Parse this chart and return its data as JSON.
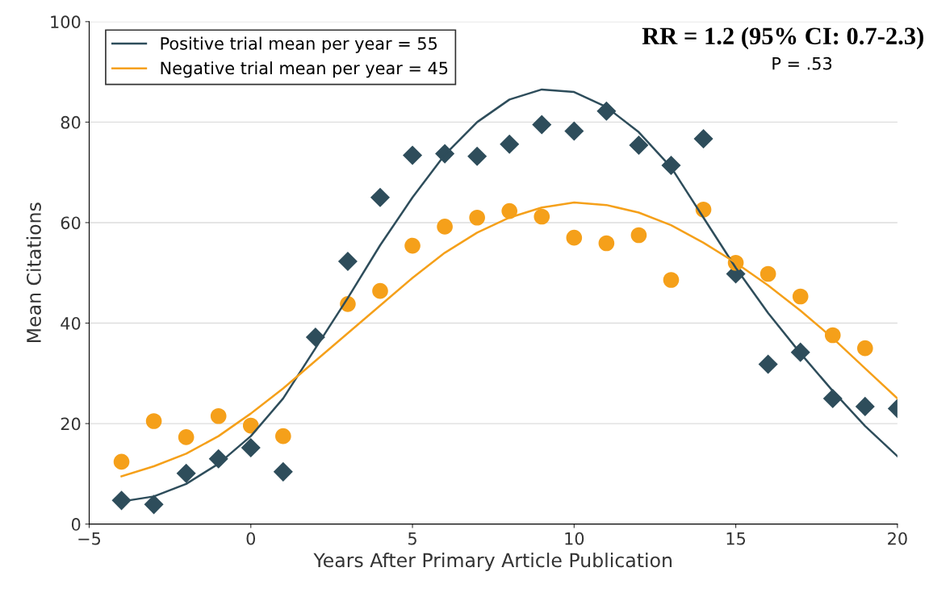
{
  "chart_data": {
    "type": "scatter",
    "xlabel": "Years After Primary Article Publication",
    "ylabel": "Mean Citations",
    "x": [
      -4,
      -3,
      -2,
      -1,
      0,
      1,
      2,
      3,
      4,
      5,
      6,
      7,
      8,
      9,
      10,
      11,
      12,
      13,
      14,
      15,
      16,
      17,
      18,
      19,
      20
    ],
    "series": [
      {
        "marker": "diamond",
        "color": "#2e4d5b",
        "values": [
          4.7,
          3.9,
          10.1,
          13,
          15.2,
          10.4,
          37.2,
          52.3,
          65,
          73.4,
          73.7,
          73.2,
          75.6,
          79.5,
          78.2,
          82.2,
          75.4,
          71.4,
          76.7,
          49.8,
          31.8,
          34.2,
          25,
          23.4,
          23
        ]
      },
      {
        "marker": "circle",
        "color": "#f5a01a",
        "values": [
          12.4,
          20.5,
          17.3,
          21.5,
          19.6,
          17.5,
          null,
          43.8,
          46.4,
          55.4,
          59.2,
          61,
          62.3,
          61.2,
          57,
          55.9,
          57.5,
          48.6,
          62.6,
          52,
          49.8,
          45.3,
          37.6,
          35,
          null
        ]
      },
      {
        "type": "line",
        "name": "Positive trial mean per year = 55",
        "color": "#2e4d5b",
        "values": [
          4.5,
          5.5,
          8,
          12,
          17.5,
          25,
          35,
          45,
          55.5,
          65,
          73.5,
          80,
          84.5,
          86.5,
          86,
          83,
          78,
          71,
          61,
          51,
          42,
          34,
          26.5,
          19.5,
          13.5
        ]
      },
      {
        "type": "line",
        "name": "Negative trial mean per year = 45",
        "color": "#f5a01a",
        "values": [
          9.5,
          11.5,
          14,
          17.5,
          22,
          27,
          32.5,
          38,
          43.5,
          49,
          54,
          58,
          61,
          63,
          64,
          63.5,
          62,
          59.5,
          56,
          52,
          47.5,
          42.5,
          37,
          31,
          25
        ]
      }
    ],
    "xlim": [
      -5,
      20
    ],
    "xticks": [
      -5,
      0,
      5,
      10,
      15,
      20
    ],
    "ylim": [
      0,
      100
    ],
    "yticks": [
      0,
      20,
      40,
      60,
      80,
      100
    ],
    "grid": "y",
    "legend": "top left",
    "annotations": [
      "RR = 1.2 (95% CI: 0.7-2.3)",
      "P = .53"
    ]
  }
}
